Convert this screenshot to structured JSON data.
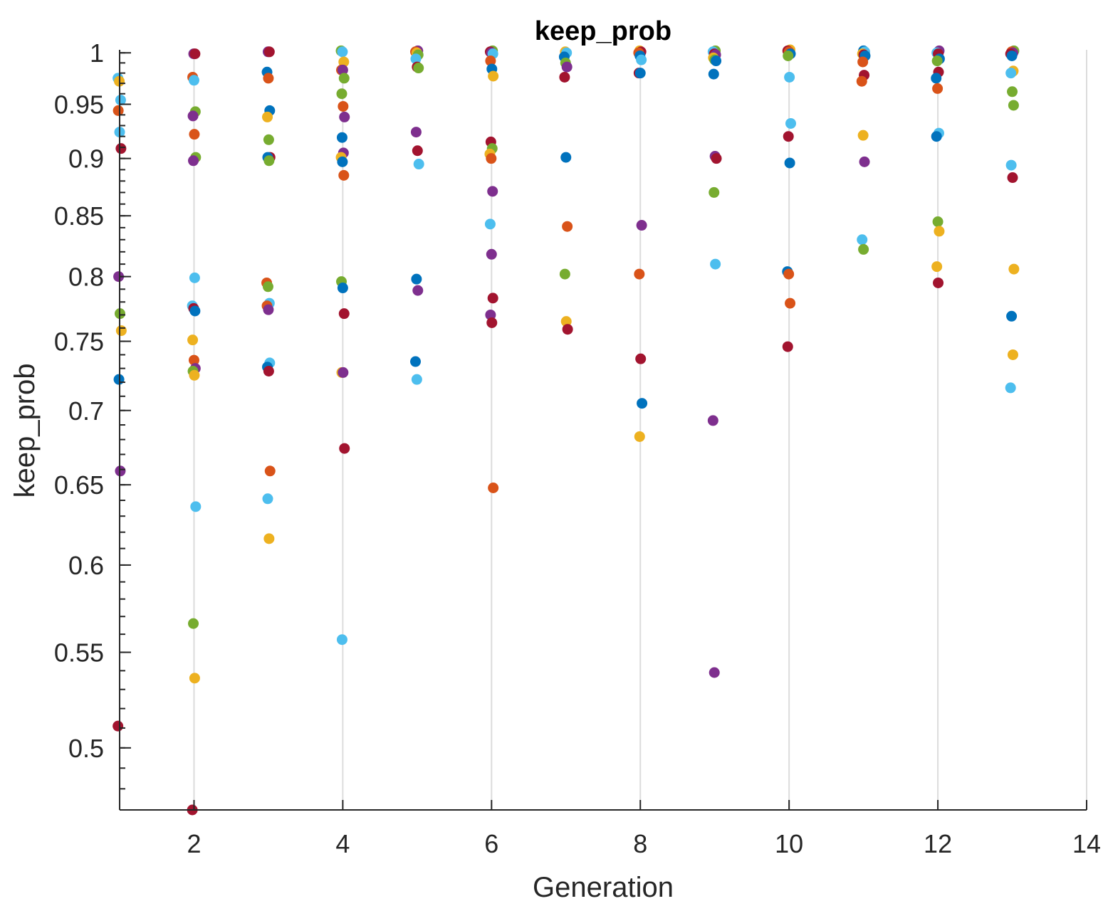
{
  "chart_data": {
    "type": "scatter",
    "title": "keep_prob",
    "xlabel": "Generation",
    "ylabel": "keep_prob",
    "xlim": [
      1,
      14
    ],
    "ylim": [
      0.47,
      1.003
    ],
    "y_scale": "log",
    "x_ticks": [
      2,
      4,
      6,
      8,
      10,
      12,
      14
    ],
    "x_tick_labels": [
      "2",
      "4",
      "6",
      "8",
      "10",
      "12",
      "14"
    ],
    "y_ticks": [
      0.5,
      0.55,
      0.6,
      0.65,
      0.7,
      0.75,
      0.8,
      0.85,
      0.9,
      0.95,
      1
    ],
    "y_tick_labels": [
      "0.5",
      "0.55",
      "0.6",
      "0.65",
      "0.7",
      "0.75",
      "0.8",
      "0.85",
      "0.9",
      "0.95",
      "1"
    ],
    "grid": "vertical",
    "legend": "none",
    "colors": {
      "blue": "#0072bd",
      "orange": "#d95319",
      "yellow": "#edb120",
      "purple": "#7e2f8e",
      "green": "#77ac30",
      "cyan": "#4dbeee",
      "red": "#a2142f"
    },
    "points": [
      {
        "x": 1.0,
        "y": 0.975,
        "c": "cyan"
      },
      {
        "x": 1.0,
        "y": 0.972,
        "c": "yellow"
      },
      {
        "x": 1.0,
        "y": 0.954,
        "c": "cyan"
      },
      {
        "x": 1.0,
        "y": 0.944,
        "c": "orange"
      },
      {
        "x": 1.0,
        "y": 0.924,
        "c": "cyan"
      },
      {
        "x": 1.0,
        "y": 0.909,
        "c": "red"
      },
      {
        "x": 1.0,
        "y": 0.8,
        "c": "purple"
      },
      {
        "x": 1.0,
        "y": 0.771,
        "c": "green"
      },
      {
        "x": 1.0,
        "y": 0.758,
        "c": "yellow"
      },
      {
        "x": 1.0,
        "y": 0.722,
        "c": "blue"
      },
      {
        "x": 1.0,
        "y": 0.659,
        "c": "purple"
      },
      {
        "x": 1.0,
        "y": 0.511,
        "c": "red"
      },
      {
        "x": 2.0,
        "y": 0.999,
        "c": "purple"
      },
      {
        "x": 2.0,
        "y": 0.999,
        "c": "red"
      },
      {
        "x": 2.0,
        "y": 0.976,
        "c": "orange"
      },
      {
        "x": 2.0,
        "y": 0.973,
        "c": "cyan"
      },
      {
        "x": 2.0,
        "y": 0.943,
        "c": "green"
      },
      {
        "x": 2.0,
        "y": 0.939,
        "c": "purple"
      },
      {
        "x": 2.0,
        "y": 0.922,
        "c": "orange"
      },
      {
        "x": 2.0,
        "y": 0.901,
        "c": "green"
      },
      {
        "x": 2.0,
        "y": 0.898,
        "c": "purple"
      },
      {
        "x": 2.0,
        "y": 0.799,
        "c": "cyan"
      },
      {
        "x": 2.0,
        "y": 0.777,
        "c": "cyan"
      },
      {
        "x": 2.0,
        "y": 0.775,
        "c": "red"
      },
      {
        "x": 2.0,
        "y": 0.773,
        "c": "blue"
      },
      {
        "x": 2.0,
        "y": 0.751,
        "c": "yellow"
      },
      {
        "x": 2.0,
        "y": 0.736,
        "c": "orange"
      },
      {
        "x": 2.0,
        "y": 0.73,
        "c": "purple"
      },
      {
        "x": 2.0,
        "y": 0.728,
        "c": "green"
      },
      {
        "x": 2.0,
        "y": 0.725,
        "c": "yellow"
      },
      {
        "x": 2.0,
        "y": 0.636,
        "c": "cyan"
      },
      {
        "x": 2.0,
        "y": 0.566,
        "c": "green"
      },
      {
        "x": 2.0,
        "y": 0.536,
        "c": "yellow"
      },
      {
        "x": 2.0,
        "y": 0.47,
        "c": "red"
      },
      {
        "x": 3.0,
        "y": 1.001,
        "c": "purple"
      },
      {
        "x": 3.0,
        "y": 1.001,
        "c": "red"
      },
      {
        "x": 3.0,
        "y": 0.981,
        "c": "blue"
      },
      {
        "x": 3.0,
        "y": 0.975,
        "c": "orange"
      },
      {
        "x": 3.0,
        "y": 0.944,
        "c": "blue"
      },
      {
        "x": 3.0,
        "y": 0.938,
        "c": "yellow"
      },
      {
        "x": 3.0,
        "y": 0.917,
        "c": "green"
      },
      {
        "x": 3.0,
        "y": 0.901,
        "c": "red"
      },
      {
        "x": 3.0,
        "y": 0.901,
        "c": "blue"
      },
      {
        "x": 3.0,
        "y": 0.898,
        "c": "green"
      },
      {
        "x": 3.0,
        "y": 0.795,
        "c": "orange"
      },
      {
        "x": 3.0,
        "y": 0.792,
        "c": "green"
      },
      {
        "x": 3.0,
        "y": 0.779,
        "c": "cyan"
      },
      {
        "x": 3.0,
        "y": 0.777,
        "c": "orange"
      },
      {
        "x": 3.0,
        "y": 0.774,
        "c": "purple"
      },
      {
        "x": 3.0,
        "y": 0.734,
        "c": "cyan"
      },
      {
        "x": 3.0,
        "y": 0.731,
        "c": "blue"
      },
      {
        "x": 3.0,
        "y": 0.728,
        "c": "red"
      },
      {
        "x": 3.0,
        "y": 0.659,
        "c": "orange"
      },
      {
        "x": 3.0,
        "y": 0.641,
        "c": "cyan"
      },
      {
        "x": 3.0,
        "y": 0.616,
        "c": "yellow"
      },
      {
        "x": 4.0,
        "y": 1.002,
        "c": "green"
      },
      {
        "x": 4.0,
        "y": 1.001,
        "c": "cyan"
      },
      {
        "x": 4.0,
        "y": 0.991,
        "c": "yellow"
      },
      {
        "x": 4.0,
        "y": 0.983,
        "c": "orange"
      },
      {
        "x": 4.0,
        "y": 0.983,
        "c": "purple"
      },
      {
        "x": 4.0,
        "y": 0.975,
        "c": "green"
      },
      {
        "x": 4.0,
        "y": 0.96,
        "c": "green"
      },
      {
        "x": 4.0,
        "y": 0.948,
        "c": "orange"
      },
      {
        "x": 4.0,
        "y": 0.938,
        "c": "purple"
      },
      {
        "x": 4.0,
        "y": 0.919,
        "c": "blue"
      },
      {
        "x": 4.0,
        "y": 0.905,
        "c": "purple"
      },
      {
        "x": 4.0,
        "y": 0.901,
        "c": "yellow"
      },
      {
        "x": 4.0,
        "y": 0.897,
        "c": "blue"
      },
      {
        "x": 4.0,
        "y": 0.885,
        "c": "orange"
      },
      {
        "x": 4.0,
        "y": 0.796,
        "c": "green"
      },
      {
        "x": 4.0,
        "y": 0.791,
        "c": "blue"
      },
      {
        "x": 4.0,
        "y": 0.771,
        "c": "red"
      },
      {
        "x": 4.0,
        "y": 0.727,
        "c": "yellow"
      },
      {
        "x": 4.0,
        "y": 0.727,
        "c": "purple"
      },
      {
        "x": 4.0,
        "y": 0.674,
        "c": "red"
      },
      {
        "x": 4.0,
        "y": 0.557,
        "c": "cyan"
      },
      {
        "x": 5.0,
        "y": 1.002,
        "c": "purple"
      },
      {
        "x": 5.0,
        "y": 1.001,
        "c": "orange"
      },
      {
        "x": 5.0,
        "y": 1.0,
        "c": "yellow"
      },
      {
        "x": 5.0,
        "y": 0.998,
        "c": "green"
      },
      {
        "x": 5.0,
        "y": 0.994,
        "c": "cyan"
      },
      {
        "x": 5.0,
        "y": 0.986,
        "c": "red"
      },
      {
        "x": 5.0,
        "y": 0.985,
        "c": "green"
      },
      {
        "x": 5.0,
        "y": 0.924,
        "c": "purple"
      },
      {
        "x": 5.0,
        "y": 0.907,
        "c": "red"
      },
      {
        "x": 5.0,
        "y": 0.895,
        "c": "cyan"
      },
      {
        "x": 5.0,
        "y": 0.798,
        "c": "blue"
      },
      {
        "x": 5.0,
        "y": 0.789,
        "c": "purple"
      },
      {
        "x": 5.0,
        "y": 0.735,
        "c": "blue"
      },
      {
        "x": 5.0,
        "y": 0.722,
        "c": "cyan"
      },
      {
        "x": 6.0,
        "y": 1.002,
        "c": "green"
      },
      {
        "x": 6.0,
        "y": 1.001,
        "c": "red"
      },
      {
        "x": 6.0,
        "y": 1.0,
        "c": "purple"
      },
      {
        "x": 6.0,
        "y": 0.999,
        "c": "cyan"
      },
      {
        "x": 6.0,
        "y": 0.992,
        "c": "orange"
      },
      {
        "x": 6.0,
        "y": 0.984,
        "c": "blue"
      },
      {
        "x": 6.0,
        "y": 0.977,
        "c": "yellow"
      },
      {
        "x": 6.0,
        "y": 0.915,
        "c": "red"
      },
      {
        "x": 6.0,
        "y": 0.909,
        "c": "green"
      },
      {
        "x": 6.0,
        "y": 0.904,
        "c": "yellow"
      },
      {
        "x": 6.0,
        "y": 0.9,
        "c": "orange"
      },
      {
        "x": 6.0,
        "y": 0.871,
        "c": "purple"
      },
      {
        "x": 6.0,
        "y": 0.843,
        "c": "cyan"
      },
      {
        "x": 6.0,
        "y": 0.818,
        "c": "purple"
      },
      {
        "x": 6.0,
        "y": 0.783,
        "c": "red"
      },
      {
        "x": 6.0,
        "y": 0.77,
        "c": "purple"
      },
      {
        "x": 6.0,
        "y": 0.764,
        "c": "red"
      },
      {
        "x": 6.0,
        "y": 0.648,
        "c": "orange"
      },
      {
        "x": 7.0,
        "y": 1.001,
        "c": "yellow"
      },
      {
        "x": 7.0,
        "y": 1.0,
        "c": "cyan"
      },
      {
        "x": 7.0,
        "y": 0.996,
        "c": "blue"
      },
      {
        "x": 7.0,
        "y": 0.99,
        "c": "green"
      },
      {
        "x": 7.0,
        "y": 0.986,
        "c": "purple"
      },
      {
        "x": 7.0,
        "y": 0.976,
        "c": "red"
      },
      {
        "x": 7.0,
        "y": 0.901,
        "c": "blue"
      },
      {
        "x": 7.0,
        "y": 0.841,
        "c": "orange"
      },
      {
        "x": 7.0,
        "y": 0.802,
        "c": "green"
      },
      {
        "x": 7.0,
        "y": 0.765,
        "c": "yellow"
      },
      {
        "x": 7.0,
        "y": 0.759,
        "c": "red"
      },
      {
        "x": 8.0,
        "y": 1.002,
        "c": "yellow"
      },
      {
        "x": 8.0,
        "y": 1.001,
        "c": "red"
      },
      {
        "x": 8.0,
        "y": 1.0,
        "c": "orange"
      },
      {
        "x": 8.0,
        "y": 0.997,
        "c": "blue"
      },
      {
        "x": 8.0,
        "y": 0.993,
        "c": "cyan"
      },
      {
        "x": 8.0,
        "y": 0.98,
        "c": "red"
      },
      {
        "x": 8.0,
        "y": 0.98,
        "c": "blue"
      },
      {
        "x": 8.0,
        "y": 0.842,
        "c": "purple"
      },
      {
        "x": 8.0,
        "y": 0.802,
        "c": "orange"
      },
      {
        "x": 8.0,
        "y": 0.737,
        "c": "red"
      },
      {
        "x": 8.0,
        "y": 0.705,
        "c": "blue"
      },
      {
        "x": 8.0,
        "y": 0.682,
        "c": "yellow"
      },
      {
        "x": 9.0,
        "y": 1.002,
        "c": "green"
      },
      {
        "x": 9.0,
        "y": 1.001,
        "c": "cyan"
      },
      {
        "x": 9.0,
        "y": 0.999,
        "c": "red"
      },
      {
        "x": 9.0,
        "y": 0.998,
        "c": "purple"
      },
      {
        "x": 9.0,
        "y": 0.995,
        "c": "yellow"
      },
      {
        "x": 9.0,
        "y": 0.993,
        "c": "green"
      },
      {
        "x": 9.0,
        "y": 0.992,
        "c": "blue"
      },
      {
        "x": 9.0,
        "y": 0.979,
        "c": "blue"
      },
      {
        "x": 9.0,
        "y": 0.902,
        "c": "purple"
      },
      {
        "x": 9.0,
        "y": 0.9,
        "c": "red"
      },
      {
        "x": 9.0,
        "y": 0.87,
        "c": "green"
      },
      {
        "x": 9.0,
        "y": 0.81,
        "c": "cyan"
      },
      {
        "x": 9.0,
        "y": 0.693,
        "c": "purple"
      },
      {
        "x": 9.0,
        "y": 0.539,
        "c": "purple"
      },
      {
        "x": 10.0,
        "y": 1.003,
        "c": "yellow"
      },
      {
        "x": 10.0,
        "y": 1.002,
        "c": "red"
      },
      {
        "x": 10.0,
        "y": 1.001,
        "c": "orange"
      },
      {
        "x": 10.0,
        "y": 0.999,
        "c": "blue"
      },
      {
        "x": 10.0,
        "y": 0.997,
        "c": "green"
      },
      {
        "x": 10.0,
        "y": 0.976,
        "c": "cyan"
      },
      {
        "x": 10.0,
        "y": 0.932,
        "c": "cyan"
      },
      {
        "x": 10.0,
        "y": 0.92,
        "c": "red"
      },
      {
        "x": 10.0,
        "y": 0.896,
        "c": "blue"
      },
      {
        "x": 10.0,
        "y": 0.804,
        "c": "blue"
      },
      {
        "x": 10.0,
        "y": 0.802,
        "c": "orange"
      },
      {
        "x": 10.0,
        "y": 0.779,
        "c": "orange"
      },
      {
        "x": 10.0,
        "y": 0.746,
        "c": "red"
      },
      {
        "x": 11.0,
        "y": 1.002,
        "c": "blue"
      },
      {
        "x": 11.0,
        "y": 1.001,
        "c": "cyan"
      },
      {
        "x": 11.0,
        "y": 0.999,
        "c": "yellow"
      },
      {
        "x": 11.0,
        "y": 0.998,
        "c": "red"
      },
      {
        "x": 11.0,
        "y": 0.997,
        "c": "blue"
      },
      {
        "x": 11.0,
        "y": 0.991,
        "c": "orange"
      },
      {
        "x": 11.0,
        "y": 0.978,
        "c": "red"
      },
      {
        "x": 11.0,
        "y": 0.972,
        "c": "orange"
      },
      {
        "x": 11.0,
        "y": 0.921,
        "c": "yellow"
      },
      {
        "x": 11.0,
        "y": 0.897,
        "c": "purple"
      },
      {
        "x": 11.0,
        "y": 0.83,
        "c": "cyan"
      },
      {
        "x": 11.0,
        "y": 0.822,
        "c": "green"
      },
      {
        "x": 12.0,
        "y": 1.002,
        "c": "purple"
      },
      {
        "x": 12.0,
        "y": 1.0,
        "c": "cyan"
      },
      {
        "x": 12.0,
        "y": 0.999,
        "c": "red"
      },
      {
        "x": 12.0,
        "y": 0.994,
        "c": "blue"
      },
      {
        "x": 12.0,
        "y": 0.992,
        "c": "green"
      },
      {
        "x": 12.0,
        "y": 0.981,
        "c": "red"
      },
      {
        "x": 12.0,
        "y": 0.975,
        "c": "blue"
      },
      {
        "x": 12.0,
        "y": 0.965,
        "c": "orange"
      },
      {
        "x": 12.0,
        "y": 0.923,
        "c": "cyan"
      },
      {
        "x": 12.0,
        "y": 0.92,
        "c": "blue"
      },
      {
        "x": 12.0,
        "y": 0.845,
        "c": "green"
      },
      {
        "x": 12.0,
        "y": 0.837,
        "c": "yellow"
      },
      {
        "x": 12.0,
        "y": 0.808,
        "c": "yellow"
      },
      {
        "x": 12.0,
        "y": 0.795,
        "c": "red"
      },
      {
        "x": 13.0,
        "y": 1.002,
        "c": "green"
      },
      {
        "x": 13.0,
        "y": 1.001,
        "c": "orange"
      },
      {
        "x": 13.0,
        "y": 1.0,
        "c": "purple"
      },
      {
        "x": 13.0,
        "y": 0.999,
        "c": "red"
      },
      {
        "x": 13.0,
        "y": 0.997,
        "c": "blue"
      },
      {
        "x": 13.0,
        "y": 0.982,
        "c": "yellow"
      },
      {
        "x": 13.0,
        "y": 0.98,
        "c": "cyan"
      },
      {
        "x": 13.0,
        "y": 0.962,
        "c": "green"
      },
      {
        "x": 13.0,
        "y": 0.949,
        "c": "green"
      },
      {
        "x": 13.0,
        "y": 0.894,
        "c": "cyan"
      },
      {
        "x": 13.0,
        "y": 0.883,
        "c": "red"
      },
      {
        "x": 13.0,
        "y": 0.806,
        "c": "yellow"
      },
      {
        "x": 13.0,
        "y": 0.769,
        "c": "blue"
      },
      {
        "x": 13.0,
        "y": 0.74,
        "c": "yellow"
      },
      {
        "x": 13.0,
        "y": 0.716,
        "c": "cyan"
      }
    ]
  }
}
